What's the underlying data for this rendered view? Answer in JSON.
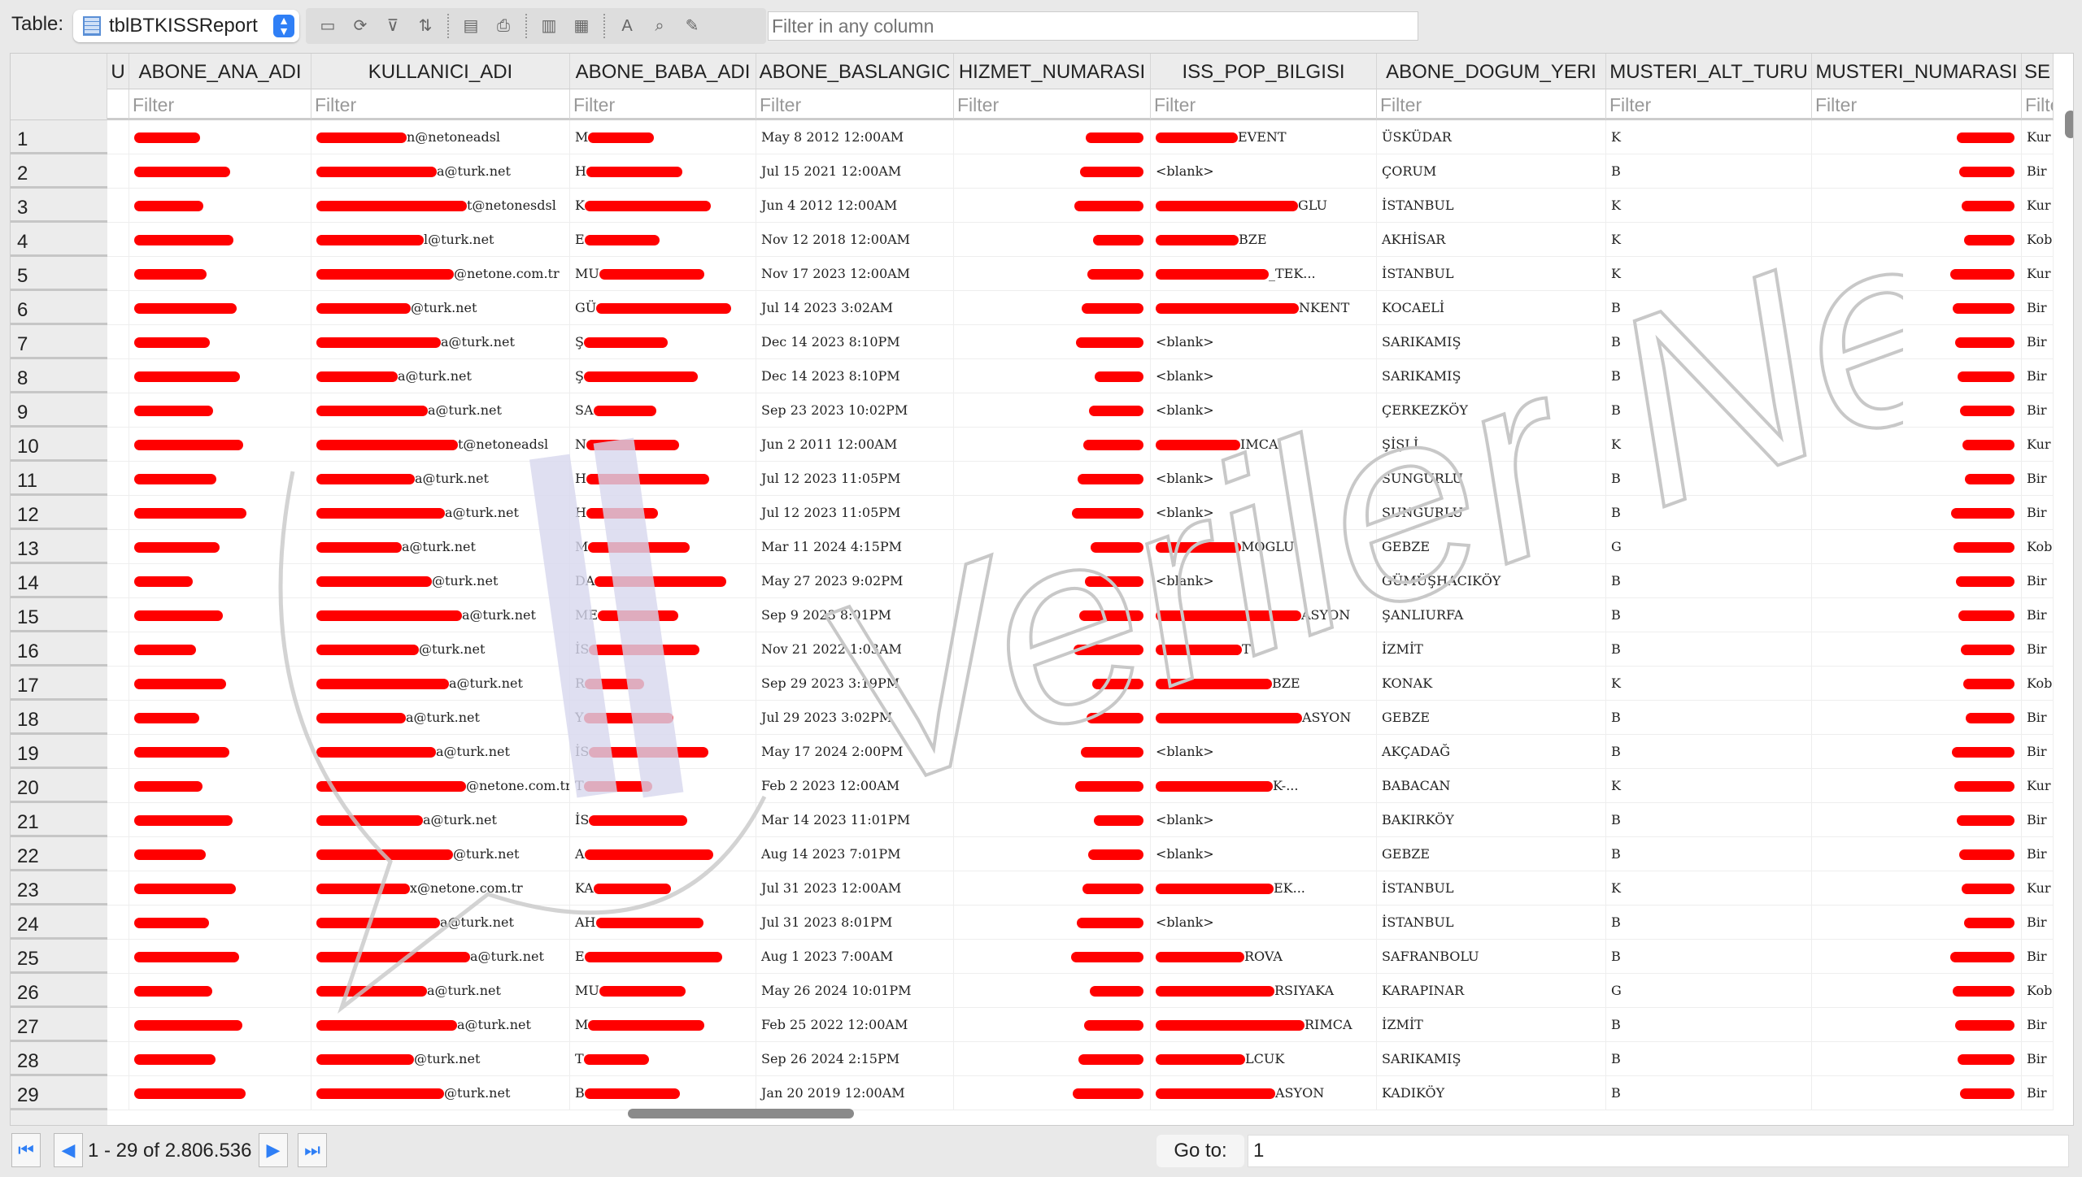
{
  "toolbar": {
    "table_label": "Table:",
    "table_name": "tblBTKISSReport",
    "filter_placeholder": "Filter in any column",
    "tools": [
      "add-record-icon",
      "refresh-icon",
      "clear-filter-icon",
      "sort-icon",
      "export-icon",
      "print-icon",
      "import-icon",
      "delete-icon",
      "font-icon",
      "find-icon",
      "edit-icon"
    ]
  },
  "columns": [
    "U",
    "ABONE_ANA_ADI",
    "KULLANICI_ADI",
    "ABONE_BABA_ADI",
    "ABONE_BASLANGIC",
    "HIZMET_NUMARASI",
    "ISS_POP_BILGISI",
    "ABONE_DOGUM_YERI",
    "MUSTERI_ALT_TURU",
    "MUSTERI_NUMARASI",
    "SE"
  ],
  "filter_placeholder": "Filter",
  "rows": [
    [
      "1",
      "n@netoneadsl",
      "M",
      "May  8 2012 12:00AM",
      "EVENT",
      "ÜSKÜDAR",
      "K",
      "Kur"
    ],
    [
      "2",
      "a@turk.net",
      "H",
      "Jul 15 2021 12:00AM",
      "<blank>",
      "ÇORUM",
      "B",
      "Bir"
    ],
    [
      "3",
      "t@netonesdsl",
      "K",
      "Jun  4 2012 12:00AM",
      "GLU",
      "İSTANBUL",
      "K",
      "Kur"
    ],
    [
      "4",
      "l@turk.net",
      "E",
      "Nov 12 2018 12:00AM",
      "BZE",
      "AKHİSAR",
      "K",
      "Kob"
    ],
    [
      "5",
      "@netone.com.tr",
      "MU",
      "Nov 17 2023 12:00AM",
      "_TEK...",
      "İSTANBUL",
      "K",
      "Kur"
    ],
    [
      "6",
      "@turk.net",
      "GÜ",
      "Jul 14 2023  3:02AM",
      "NKENT",
      "KOCAELİ",
      "B",
      "Bir"
    ],
    [
      "7",
      "a@turk.net",
      "Ş",
      "Dec 14 2023  8:10PM",
      "<blank>",
      "SARIKAMIŞ",
      "B",
      "Bir"
    ],
    [
      "8",
      "a@turk.net",
      "Ş",
      "Dec 14 2023  8:10PM",
      "<blank>",
      "SARIKAMIŞ",
      "B",
      "Bir"
    ],
    [
      "9",
      "a@turk.net",
      "SA",
      "Sep 23 2023 10:02PM",
      "<blank>",
      "ÇERKEZKÖY",
      "B",
      "Bir"
    ],
    [
      "10",
      "t@netoneadsl",
      "N",
      "Jun  2 2011 12:00AM",
      "IMCA",
      "ŞİŞLİ",
      "K",
      "Kur"
    ],
    [
      "11",
      "a@turk.net",
      "H",
      "Jul 12 2023 11:05PM",
      "<blank>",
      "SUNGURLU",
      "B",
      "Bir"
    ],
    [
      "12",
      "a@turk.net",
      "H",
      "Jul 12 2023 11:05PM",
      "<blank>",
      "SUNGURLU",
      "B",
      "Bir"
    ],
    [
      "13",
      "a@turk.net",
      "M",
      "Mar 11 2024  4:15PM",
      "MOGLU",
      "GEBZE",
      "G",
      "Kob"
    ],
    [
      "14",
      "@turk.net",
      "DA",
      "May 27 2023  9:02PM",
      "<blank>",
      "GÜMÜŞHACIKÖY",
      "B",
      "Bir"
    ],
    [
      "15",
      "a@turk.net",
      "ME",
      "Sep  9 2023  8:01PM",
      "ASYON",
      "ŞANLIURFA",
      "B",
      "Bir"
    ],
    [
      "16",
      "@turk.net",
      "İS",
      "Nov 21 2022  1:03AM",
      "T",
      "İZMİT",
      "B",
      "Bir"
    ],
    [
      "17",
      "a@turk.net",
      "R",
      "Sep 29 2023  3:19PM",
      "BZE",
      "KONAK",
      "K",
      "Kob"
    ],
    [
      "18",
      "a@turk.net",
      "Y",
      "Jul 29 2023  3:02PM",
      "ASYON",
      "GEBZE",
      "B",
      "Bir"
    ],
    [
      "19",
      "a@turk.net",
      "İS",
      "May 17 2024  2:00PM",
      "<blank>",
      "AKÇADAĞ",
      "B",
      "Bir"
    ],
    [
      "20",
      "@netone.com.tr",
      "T",
      "Feb  2 2023 12:00AM",
      "K-...",
      "BABACAN",
      "K",
      "Kur"
    ],
    [
      "21",
      "a@turk.net",
      "İS",
      "Mar 14 2023 11:01PM",
      "<blank>",
      "BAKIRKÖY",
      "B",
      "Bir"
    ],
    [
      "22",
      "@turk.net",
      "A",
      "Aug 14 2023  7:01PM",
      "<blank>",
      "GEBZE",
      "B",
      "Bir"
    ],
    [
      "23",
      "x@netone.com.tr",
      "KA",
      "Jul 31 2023 12:00AM",
      "EK...",
      "İSTANBUL",
      "K",
      "Kur"
    ],
    [
      "24",
      "a@turk.net",
      "AH",
      "Jul 31 2023  8:01PM",
      "<blank>",
      "İSTANBUL",
      "B",
      "Bir"
    ],
    [
      "25",
      "a@turk.net",
      "E",
      "Aug  1 2023  7:00AM",
      "ROVA",
      "SAFRANBOLU",
      "B",
      "Bir"
    ],
    [
      "26",
      "a@turk.net",
      "MU",
      "May 26 2024 10:01PM",
      "RSIYAKA",
      "KARAPINAR",
      "G",
      "Kob"
    ],
    [
      "27",
      "a@turk.net",
      "M",
      "Feb 25 2022 12:00AM",
      "RIMCA",
      "İZMİT",
      "B",
      "Bir"
    ],
    [
      "28",
      "@turk.net",
      "T",
      "Sep 26 2024  2:15PM",
      "LCUK",
      "SARIKAMIŞ",
      "B",
      "Bir"
    ],
    [
      "29",
      "@turk.net",
      "B",
      "Jan 20 2019 12:00AM",
      "ASYON",
      "KADIKÖY",
      "B",
      "Bir"
    ]
  ],
  "redaction_color": "#ff0000",
  "pager": {
    "info": "1 - 29 of 2.806.536",
    "goto_label": "Go to:",
    "goto_value": "1"
  },
  "watermark": "Veriler Ne Diyor?"
}
